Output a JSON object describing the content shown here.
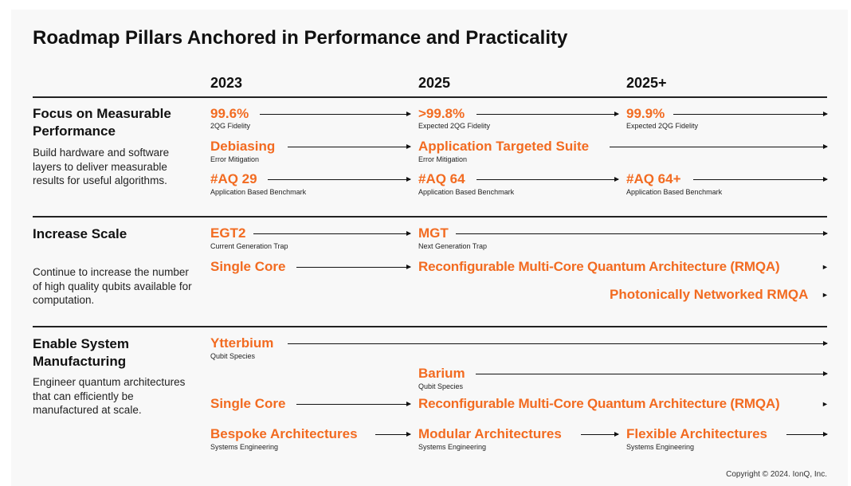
{
  "title": "Roadmap Pillars Anchored in Performance and Practicality",
  "years": [
    "2023",
    "2025",
    "2025+"
  ],
  "sections": [
    {
      "heading": "Focus on Measurable Performance",
      "description": "Build hardware and software layers to deliver measurable results for useful algorithms.",
      "rows": [
        {
          "items": [
            {
              "value": "99.6%",
              "label": "2QG Fidelity"
            },
            {
              "value": ">99.8%",
              "label": "Expected 2QG Fidelity"
            },
            {
              "value": "99.9%",
              "label": "Expected 2QG Fidelity"
            }
          ]
        },
        {
          "items": [
            {
              "value": "Debiasing",
              "label": "Error Mitigation"
            },
            {
              "value": "Application Targeted Suite",
              "label": "Error Mitigation"
            }
          ]
        },
        {
          "items": [
            {
              "value": "#AQ 29",
              "label": "Application Based Benchmark"
            },
            {
              "value": "#AQ 64",
              "label": "Application Based Benchmark"
            },
            {
              "value": "#AQ 64+",
              "label": "Application Based Benchmark"
            }
          ]
        }
      ]
    },
    {
      "heading": "Increase Scale",
      "description": "Continue to increase the number of high quality qubits available for computation.",
      "rows": [
        {
          "items": [
            {
              "value": "EGT2",
              "label": "Current Generation Trap"
            },
            {
              "value": "MGT",
              "label": "Next Generation Trap"
            }
          ]
        },
        {
          "items": [
            {
              "value": "Single Core"
            },
            {
              "value": "Reconfigurable Multi-Core Quantum Architecture (RMQA)"
            }
          ]
        },
        {
          "items": [
            {
              "value": "Photonically Networked RMQA"
            }
          ]
        }
      ]
    },
    {
      "heading": "Enable System Manufacturing",
      "description": "Engineer quantum architectures that can efficiently be manufactured at scale.",
      "rows": [
        {
          "items": [
            {
              "value": "Ytterbium",
              "label": "Qubit Species"
            }
          ]
        },
        {
          "items": [
            {
              "value": "Barium",
              "label": "Qubit Species"
            }
          ]
        },
        {
          "items": [
            {
              "value": "Single Core"
            },
            {
              "value": "Reconfigurable Multi-Core Quantum Architecture (RMQA)"
            }
          ]
        },
        {
          "items": [
            {
              "value": "Bespoke Architectures",
              "label": "Systems Engineering"
            },
            {
              "value": "Modular Architectures",
              "label": "Systems Engineering"
            },
            {
              "value": "Flexible Architectures",
              "label": "Systems Engineering"
            }
          ]
        }
      ]
    }
  ],
  "copyright": "Copyright © 2024. IonQ, Inc."
}
